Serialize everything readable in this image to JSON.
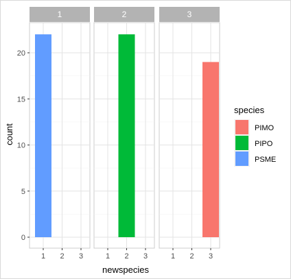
{
  "chart_data": {
    "type": "bar",
    "facets": [
      "1",
      "2",
      "3"
    ],
    "categories": [
      "1",
      "2",
      "3"
    ],
    "xlabel": "newspecies",
    "ylabel": "count",
    "ylim": [
      0,
      22
    ],
    "yticks": [
      0,
      5,
      10,
      15,
      20
    ],
    "grid": true,
    "legend": {
      "title": "species",
      "position": "right",
      "entries": [
        {
          "name": "PIMO",
          "color": "#F8766D"
        },
        {
          "name": "PIPO",
          "color": "#00BA38"
        },
        {
          "name": "PSME",
          "color": "#619CFF"
        }
      ]
    },
    "bars": [
      {
        "facet": "1",
        "x": "1",
        "species": "PSME",
        "value": 22
      },
      {
        "facet": "2",
        "x": "2",
        "species": "PIPO",
        "value": 22
      },
      {
        "facet": "3",
        "x": "3",
        "species": "PIMO",
        "value": 19
      }
    ]
  }
}
